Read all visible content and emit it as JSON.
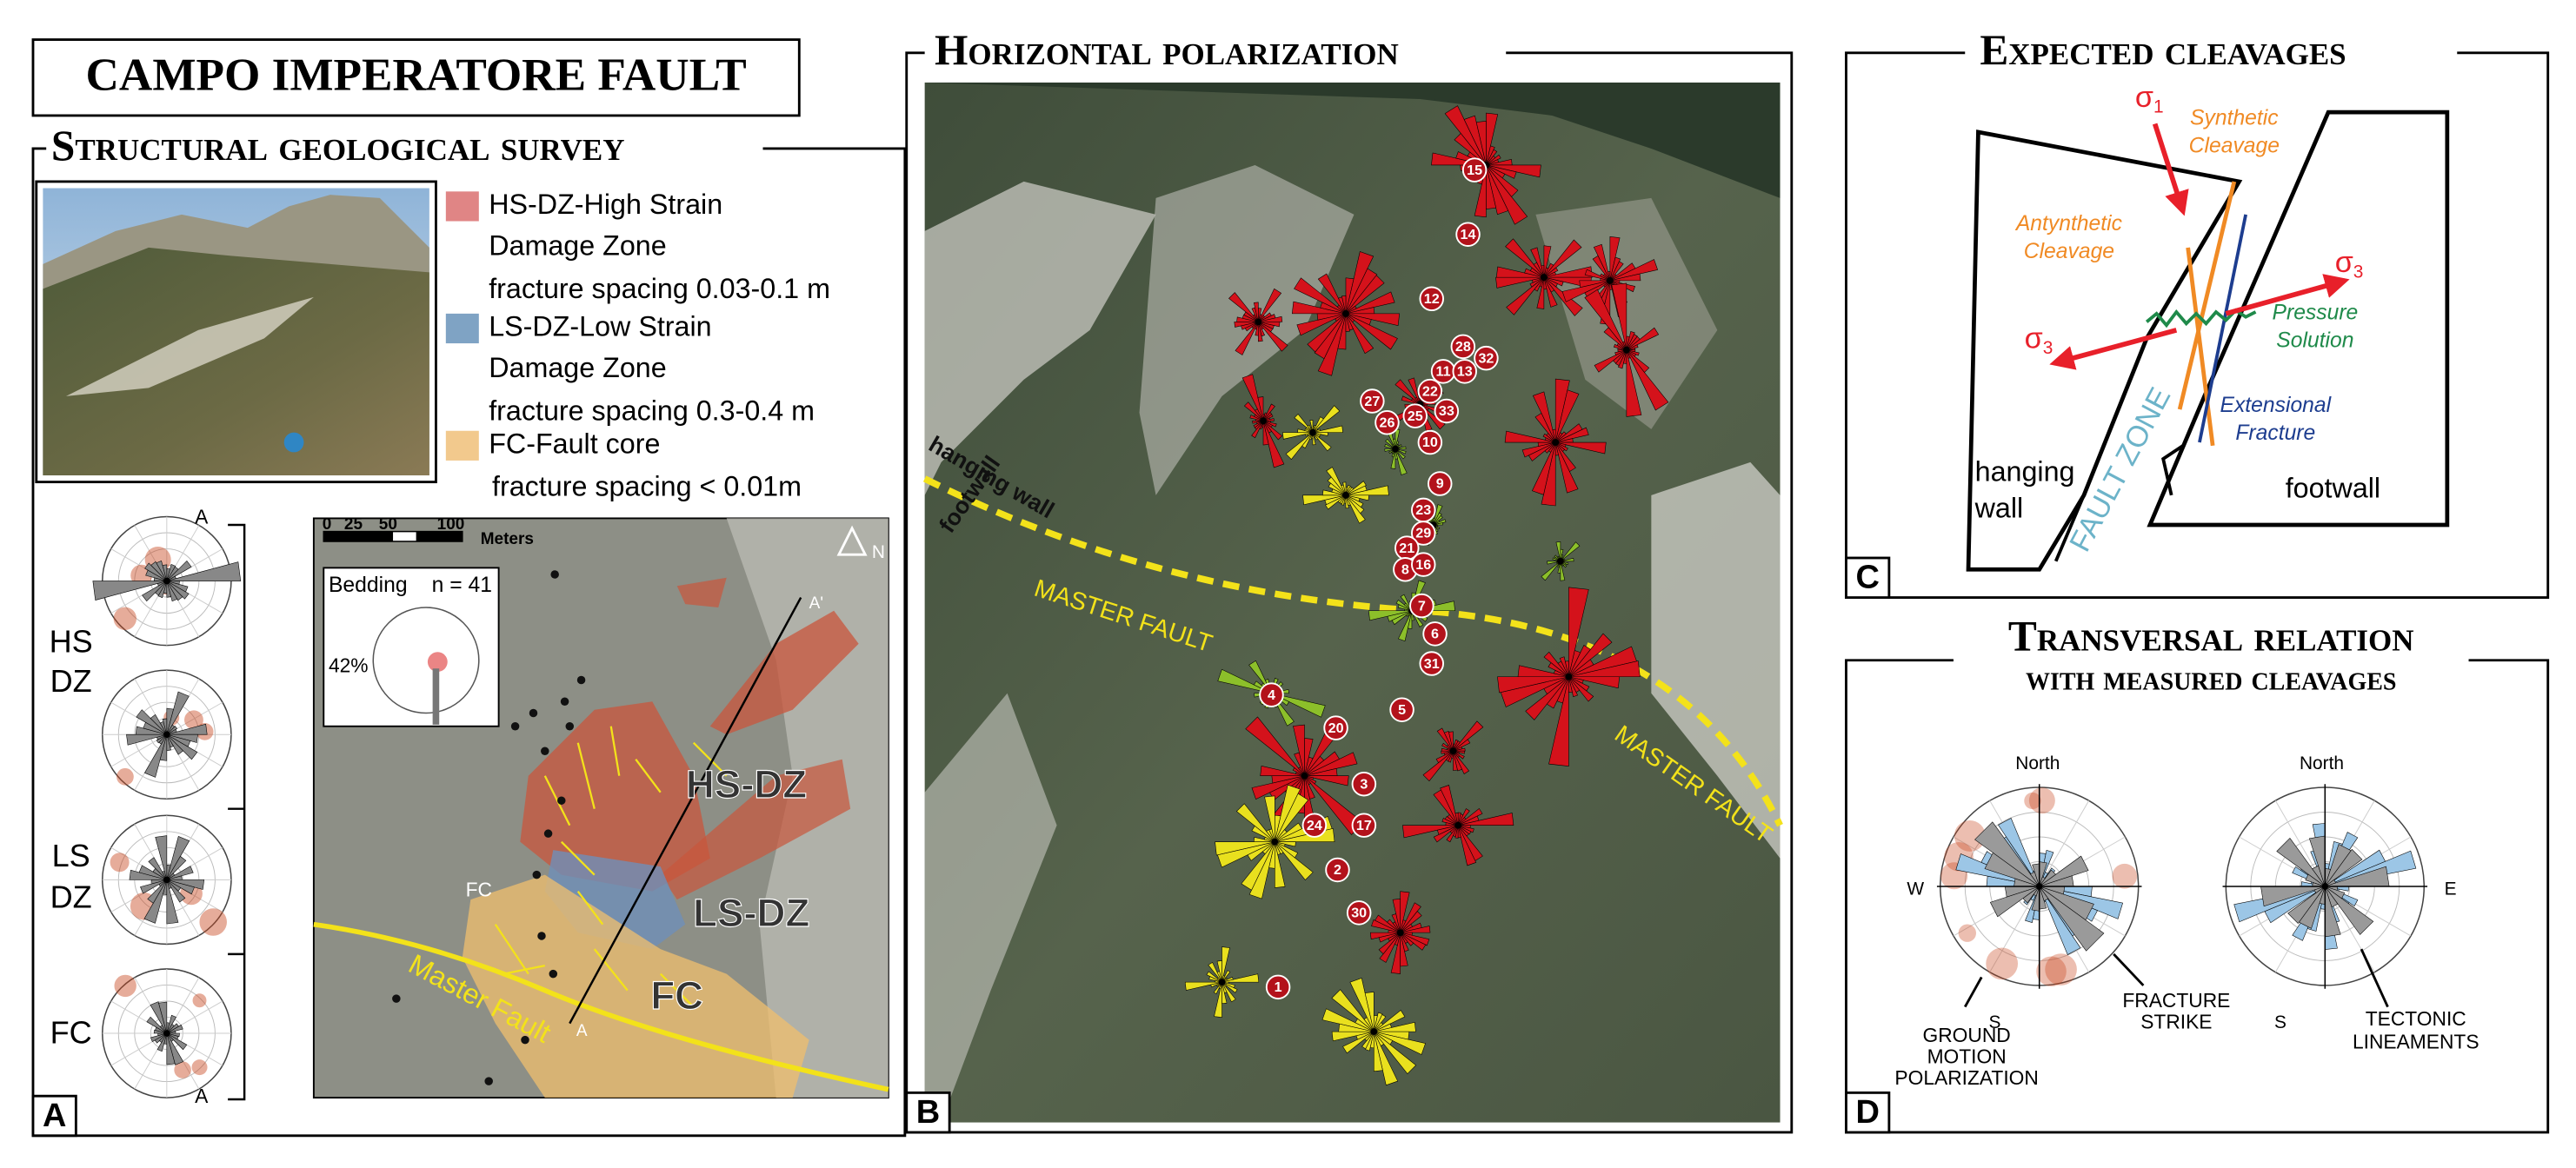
{
  "title": "CAMPO IMPERATORE FAULT",
  "panel_a": {
    "letter": "A",
    "heading": "Structural geological survey",
    "legend": [
      {
        "name": "HS-DZ-High Strain",
        "color": "#e08585",
        "lines": [
          "Damage Zone",
          "fracture spacing 0.03-0.1 m"
        ]
      },
      {
        "name": "LS-DZ-Low Strain",
        "color": "#7fa3c4",
        "lines": [
          "Damage Zone",
          "fracture spacing 0.3-0.4 m"
        ]
      },
      {
        "name": "FC-Fault core",
        "color": "#f2c98d",
        "lines": [
          "fracture spacing < 0.01m"
        ]
      }
    ],
    "zone_labels": [
      "HS",
      "DZ",
      "LS",
      "DZ",
      "FC"
    ],
    "profile_ends": [
      "A",
      "A"
    ],
    "map": {
      "scale_ticks": [
        0,
        25,
        50,
        100
      ],
      "scale_unit": "Meters",
      "north": "N",
      "inset_title": "Bedding",
      "inset_count": "n = 41",
      "inset_percent": "42%",
      "zone_hs": "HS-DZ",
      "zone_ls": "LS-DZ",
      "zone_fc": "FC",
      "zone_fc_small": "FC",
      "fault": "Master Fault",
      "section_start": "A",
      "section_end": "A'"
    }
  },
  "panel_b": {
    "letter": "B",
    "heading": "Horizontal polarization",
    "sites": [
      15,
      14,
      12,
      28,
      11,
      13,
      32,
      22,
      27,
      26,
      25,
      33,
      10,
      9,
      23,
      29,
      21,
      8,
      16,
      7,
      6,
      31,
      4,
      5,
      20,
      3,
      24,
      17,
      2,
      30,
      1
    ],
    "hanging_wall": "hanging wall",
    "footwall": "footwall",
    "master_fault": [
      "MASTER FAULT",
      "MASTER FAULT"
    ]
  },
  "panel_c": {
    "letter": "C",
    "heading": "Expected cleavages",
    "sigma1": {
      "symbol": "σ",
      "subscript": "1"
    },
    "sigma3": {
      "symbol": "σ",
      "subscript": "3"
    },
    "synthetic": [
      "Synthetic",
      "Cleavage"
    ],
    "antithetic": [
      "Antynthetic",
      "Cleavage"
    ],
    "pressure": [
      "Pressure",
      "Solution"
    ],
    "extensional": [
      "Extensional",
      "Fracture"
    ],
    "hanging_wall": [
      "hanging",
      "wall"
    ],
    "fault_zone": "FAULT ZONE",
    "footwall": "footwall"
  },
  "panel_d": {
    "letter": "D",
    "heading": [
      "Transversal relation",
      "with measured cleavages"
    ],
    "left_rose": {
      "north": "North",
      "west": "W",
      "south": "S"
    },
    "right_rose": {
      "north": "North",
      "east": "E",
      "south": "S"
    },
    "fracture_strike": [
      "FRACTURE",
      "STRIKE"
    ],
    "ground_motion": [
      "GROUND",
      "MOTION",
      "POLARIZATION"
    ],
    "tectonic": [
      "TECTONIC",
      "LINEAMENTS"
    ]
  }
}
